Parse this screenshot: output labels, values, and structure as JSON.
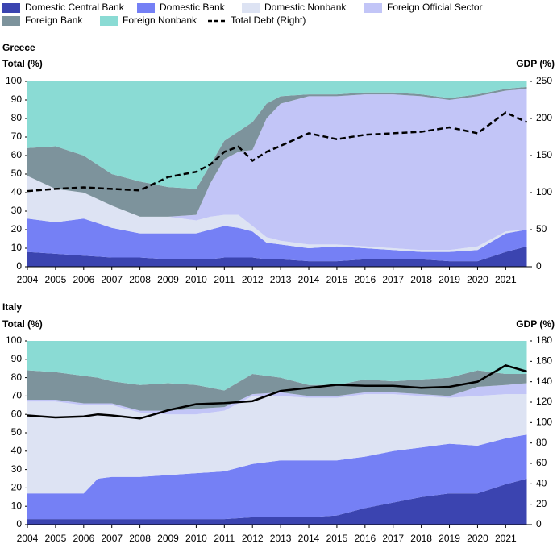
{
  "chart_data": [
    {
      "type": "stacked_area",
      "title": "Greece",
      "y_label": "Total (%)",
      "y2_label": "GDP (%)",
      "x": [
        2004,
        2005,
        2006,
        2007,
        2008,
        2009,
        2010,
        2010.5,
        2011,
        2011.5,
        2012,
        2012.5,
        2013,
        2014,
        2015,
        2016,
        2017,
        2018,
        2019,
        2020,
        2021,
        2021.75
      ],
      "xlim": [
        2004,
        2021.85
      ],
      "xticks": [
        2004,
        2005,
        2006,
        2007,
        2008,
        2009,
        2010,
        2011,
        2012,
        2013,
        2014,
        2015,
        2016,
        2017,
        2018,
        2019,
        2020,
        2021
      ],
      "ylim": [
        0,
        100
      ],
      "yticks": [
        0,
        10,
        20,
        30,
        40,
        50,
        60,
        70,
        80,
        90,
        100
      ],
      "y2lim": [
        0,
        250
      ],
      "y2ticks": [
        0,
        50,
        100,
        150,
        200,
        250
      ],
      "series": [
        {
          "name": "Domestic Central Bank",
          "color": "#3b44b0",
          "values": [
            8,
            7,
            6,
            5,
            5,
            4,
            4,
            4,
            5,
            5,
            5,
            4,
            4,
            3,
            3,
            4,
            4,
            4,
            3,
            3,
            8,
            11
          ]
        },
        {
          "name": "Domestic Bank",
          "color": "#7580f5",
          "values": [
            18,
            17,
            20,
            16,
            13,
            14,
            14,
            16,
            17,
            16,
            14,
            9,
            8,
            7,
            8,
            6,
            5,
            4,
            5,
            6,
            10,
            9
          ]
        },
        {
          "name": "Domestic Nonbank",
          "color": "#dde3f3",
          "values": [
            23,
            18,
            14,
            12,
            9,
            9,
            7,
            7,
            6,
            7,
            3,
            3,
            2,
            2,
            1,
            1,
            1,
            1,
            1,
            2,
            1,
            0
          ]
        },
        {
          "name": "Foreign Official Sector",
          "color": "#c2c5f7",
          "values": [
            0,
            0,
            0,
            0,
            0,
            0,
            3,
            18,
            30,
            34,
            41,
            64,
            74,
            80,
            80,
            82,
            83,
            83,
            81,
            81,
            76,
            76
          ]
        },
        {
          "name": "Foreign Bank",
          "color": "#7d939c",
          "values": [
            15,
            23,
            20,
            17,
            19,
            16,
            14,
            10,
            10,
            11,
            15,
            8,
            4,
            1,
            1,
            1,
            1,
            1,
            1,
            1,
            1,
            1
          ]
        },
        {
          "name": "Foreign Nonbank",
          "color": "#8adbd4",
          "values": [
            36,
            35,
            40,
            50,
            54,
            57,
            58,
            45,
            32,
            27,
            22,
            12,
            8,
            7,
            7,
            6,
            6,
            7,
            9,
            7,
            4,
            3
          ]
        },
        {
          "name": "Total Debt (Right)",
          "color": "#000000",
          "axis": "y2",
          "dash": true,
          "values": [
            102,
            105,
            107,
            105,
            103,
            121,
            128,
            138,
            155,
            162,
            143,
            155,
            163,
            180,
            172,
            178,
            180,
            182,
            188,
            180,
            208,
            195
          ]
        }
      ]
    },
    {
      "type": "stacked_area",
      "title": "Italy",
      "y_label": "Total (%)",
      "y2_label": "GDP (%)",
      "x": [
        2004,
        2005,
        2006,
        2006.5,
        2007,
        2008,
        2009,
        2010,
        2011,
        2012,
        2013,
        2014,
        2015,
        2016,
        2017,
        2018,
        2019,
        2020,
        2021,
        2021.75
      ],
      "xlim": [
        2004,
        2021.85
      ],
      "xticks": [
        2004,
        2005,
        2006,
        2007,
        2008,
        2009,
        2010,
        2011,
        2012,
        2013,
        2014,
        2015,
        2016,
        2017,
        2018,
        2019,
        2020,
        2021
      ],
      "ylim": [
        0,
        100
      ],
      "yticks": [
        0,
        10,
        20,
        30,
        40,
        50,
        60,
        70,
        80,
        90,
        100
      ],
      "y2lim": [
        0,
        180
      ],
      "y2ticks": [
        0,
        20,
        40,
        60,
        80,
        100,
        120,
        140,
        160,
        180
      ],
      "series": [
        {
          "values": [
            3,
            3,
            3,
            3,
            3,
            3,
            3,
            3,
            3,
            4,
            4,
            4,
            5,
            9,
            12,
            15,
            17,
            17,
            22,
            25
          ]
        },
        {
          "values": [
            14,
            14,
            14,
            22,
            23,
            23,
            24,
            25,
            26,
            29,
            31,
            31,
            30,
            28,
            28,
            27,
            27,
            26,
            25,
            24
          ]
        },
        {
          "values": [
            50,
            50,
            48,
            40,
            39,
            35,
            33,
            32,
            33,
            37,
            35,
            34,
            34,
            34,
            31,
            28,
            25,
            27,
            24,
            22
          ]
        },
        {
          "values": [
            1,
            1,
            1,
            1,
            1,
            1,
            2,
            3,
            2,
            1,
            2,
            1,
            1,
            1,
            1,
            1,
            1,
            5,
            5,
            6
          ]
        },
        {
          "values": [
            16,
            15,
            15,
            14,
            12,
            14,
            15,
            13,
            9,
            11,
            8,
            6,
            6,
            7,
            6,
            8,
            10,
            9,
            6,
            5
          ]
        },
        {
          "values": [
            16,
            17,
            19,
            20,
            22,
            24,
            23,
            24,
            27,
            18,
            20,
            24,
            24,
            21,
            22,
            21,
            20,
            16,
            18,
            18
          ]
        },
        {
          "axis": "y2",
          "dash": false,
          "values": [
            107,
            105,
            106,
            108,
            107,
            104,
            112,
            118,
            119,
            121,
            131,
            134,
            137,
            136,
            136,
            134,
            135,
            140,
            156,
            150
          ]
        }
      ]
    }
  ]
}
